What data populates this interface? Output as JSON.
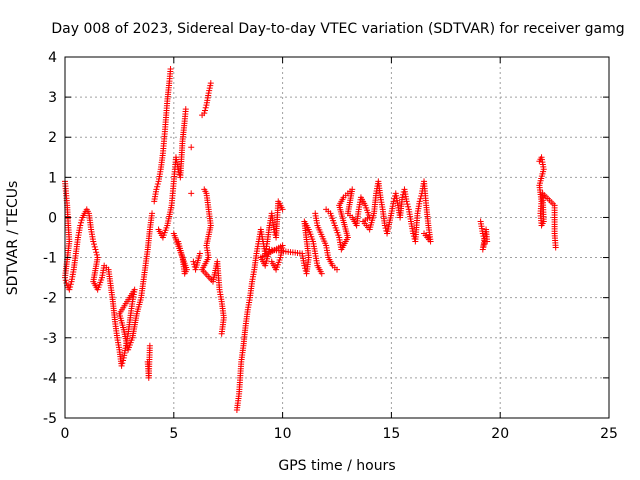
{
  "chart_data": {
    "type": "scatter",
    "title": "Day 008 of 2023, Sidereal Day-to-day VTEC variation (SDTVAR) for receiver gamg",
    "xlabel": "GPS time / hours",
    "ylabel": "SDTVAR / TECUs",
    "xlim": [
      0,
      25
    ],
    "ylim": [
      -5,
      4
    ],
    "x_ticks": [
      0,
      5,
      10,
      15,
      20,
      25
    ],
    "x_tick_labels": [
      "0",
      "5",
      "10",
      "15",
      "20",
      "25"
    ],
    "y_ticks": [
      -5,
      -4,
      -3,
      -2,
      -1,
      0,
      1,
      2,
      3,
      4
    ],
    "y_tick_labels": [
      "-5",
      "-4",
      "-3",
      "-2",
      "-1",
      "0",
      "1",
      "2",
      "3",
      "4"
    ],
    "grid": true,
    "marker": "+",
    "color": "#ff0000",
    "series": [
      {
        "name": "SDTVAR",
        "points": [
          [
            0.0,
            0.9
          ],
          [
            0.05,
            0.6
          ],
          [
            0.1,
            0.3
          ],
          [
            0.15,
            -0.2
          ],
          [
            0.2,
            -0.6
          ],
          [
            0.0,
            -1.5
          ],
          [
            0.1,
            -1.7
          ],
          [
            0.2,
            -1.8
          ],
          [
            0.3,
            -1.6
          ],
          [
            0.4,
            -1.3
          ],
          [
            0.5,
            -0.9
          ],
          [
            0.6,
            -0.5
          ],
          [
            0.7,
            -0.2
          ],
          [
            0.8,
            0.0
          ],
          [
            0.9,
            0.1
          ],
          [
            1.0,
            0.2
          ],
          [
            1.1,
            0.1
          ],
          [
            1.2,
            -0.3
          ],
          [
            1.3,
            -0.6
          ],
          [
            1.4,
            -0.8
          ],
          [
            1.5,
            -1.0
          ],
          [
            1.3,
            -1.6
          ],
          [
            1.5,
            -1.8
          ],
          [
            1.7,
            -1.5
          ],
          [
            1.8,
            -1.2
          ],
          [
            2.0,
            -1.3
          ],
          [
            2.1,
            -1.7
          ],
          [
            2.2,
            -2.1
          ],
          [
            2.3,
            -2.6
          ],
          [
            2.4,
            -3.0
          ],
          [
            2.5,
            -3.3
          ],
          [
            2.6,
            -3.7
          ],
          [
            2.7,
            -3.5
          ],
          [
            2.8,
            -3.2
          ],
          [
            2.9,
            -2.9
          ],
          [
            3.0,
            -2.5
          ],
          [
            3.1,
            -2.1
          ],
          [
            3.2,
            -1.8
          ],
          [
            2.5,
            -2.4
          ],
          [
            2.7,
            -2.8
          ],
          [
            2.9,
            -3.3
          ],
          [
            3.1,
            -3.0
          ],
          [
            3.3,
            -2.4
          ],
          [
            3.5,
            -2.0
          ],
          [
            3.6,
            -1.6
          ],
          [
            3.7,
            -1.2
          ],
          [
            3.8,
            -0.8
          ],
          [
            3.9,
            -0.3
          ],
          [
            4.0,
            0.1
          ],
          [
            3.8,
            -3.6
          ],
          [
            3.85,
            -4.0
          ],
          [
            3.9,
            -3.2
          ],
          [
            4.1,
            0.4
          ],
          [
            4.2,
            0.7
          ],
          [
            4.3,
            0.9
          ],
          [
            4.4,
            1.2
          ],
          [
            4.5,
            1.6
          ],
          [
            4.6,
            2.2
          ],
          [
            4.7,
            2.9
          ],
          [
            4.8,
            3.4
          ],
          [
            4.85,
            3.7
          ],
          [
            4.3,
            -0.3
          ],
          [
            4.5,
            -0.5
          ],
          [
            4.7,
            -0.2
          ],
          [
            4.9,
            0.3
          ],
          [
            5.0,
            0.9
          ],
          [
            5.1,
            1.5
          ],
          [
            5.2,
            1.2
          ],
          [
            5.3,
            1.0
          ],
          [
            5.4,
            1.9
          ],
          [
            5.5,
            2.4
          ],
          [
            5.55,
            2.7
          ],
          [
            5.2,
            -0.6
          ],
          [
            5.4,
            -1.0
          ],
          [
            5.5,
            -1.4
          ],
          [
            5.6,
            -1.3
          ],
          [
            5.0,
            -0.4
          ],
          [
            5.8,
            1.75
          ],
          [
            5.8,
            0.6
          ],
          [
            5.9,
            -1.1
          ],
          [
            6.0,
            -1.3
          ],
          [
            6.2,
            -0.9
          ],
          [
            6.3,
            2.55
          ],
          [
            6.4,
            2.6
          ],
          [
            6.5,
            2.8
          ],
          [
            6.6,
            3.1
          ],
          [
            6.7,
            3.35
          ],
          [
            6.4,
            0.7
          ],
          [
            6.5,
            0.6
          ],
          [
            6.6,
            0.2
          ],
          [
            6.7,
            -0.2
          ],
          [
            6.5,
            -0.7
          ],
          [
            6.6,
            -1.0
          ],
          [
            6.3,
            -1.3
          ],
          [
            6.8,
            -1.6
          ],
          [
            7.0,
            -1.1
          ],
          [
            7.1,
            -1.8
          ],
          [
            7.2,
            -2.1
          ],
          [
            7.3,
            -2.5
          ],
          [
            7.2,
            -2.9
          ],
          [
            7.9,
            -4.8
          ],
          [
            8.0,
            -4.4
          ],
          [
            8.05,
            -4.0
          ],
          [
            8.1,
            -3.6
          ],
          [
            8.2,
            -3.2
          ],
          [
            8.3,
            -2.7
          ],
          [
            8.4,
            -2.3
          ],
          [
            8.5,
            -2.0
          ],
          [
            8.6,
            -1.6
          ],
          [
            8.7,
            -1.3
          ],
          [
            8.8,
            -0.9
          ],
          [
            8.9,
            -0.6
          ],
          [
            9.0,
            -0.3
          ],
          [
            9.1,
            -0.6
          ],
          [
            9.2,
            -0.9
          ],
          [
            9.3,
            -0.6
          ],
          [
            9.4,
            -0.2
          ],
          [
            9.5,
            0.1
          ],
          [
            9.6,
            -0.3
          ],
          [
            9.7,
            -0.5
          ],
          [
            9.8,
            0.4
          ],
          [
            9.9,
            0.3
          ],
          [
            10.0,
            0.2
          ],
          [
            9.5,
            -1.1
          ],
          [
            9.7,
            -1.3
          ],
          [
            9.9,
            -1.0
          ],
          [
            10.0,
            -0.7
          ],
          [
            9.0,
            -1.0
          ],
          [
            9.2,
            -1.2
          ],
          [
            9.4,
            -0.8
          ],
          [
            10.9,
            -0.9
          ],
          [
            11.0,
            -1.2
          ],
          [
            11.1,
            -1.4
          ],
          [
            11.2,
            -1.0
          ],
          [
            11.0,
            -0.1
          ],
          [
            11.2,
            -0.3
          ],
          [
            11.4,
            -0.6
          ],
          [
            11.5,
            -0.9
          ],
          [
            11.6,
            -1.2
          ],
          [
            11.8,
            -1.4
          ],
          [
            11.5,
            0.1
          ],
          [
            11.6,
            -0.2
          ],
          [
            12.0,
            -0.7
          ],
          [
            12.1,
            -1.0
          ],
          [
            12.3,
            -1.2
          ],
          [
            12.5,
            -1.3
          ],
          [
            12.0,
            0.2
          ],
          [
            12.2,
            0.1
          ],
          [
            12.4,
            -0.2
          ],
          [
            12.6,
            -0.5
          ],
          [
            12.7,
            -0.8
          ],
          [
            12.9,
            -0.6
          ],
          [
            13.0,
            -0.5
          ],
          [
            12.6,
            0.3
          ],
          [
            12.8,
            0.5
          ],
          [
            13.0,
            0.6
          ],
          [
            13.2,
            0.7
          ],
          [
            13.0,
            0.1
          ],
          [
            13.2,
            0.0
          ],
          [
            13.4,
            -0.2
          ],
          [
            13.5,
            0.2
          ],
          [
            13.6,
            0.5
          ],
          [
            13.8,
            0.3
          ],
          [
            14.0,
            0.0
          ],
          [
            13.7,
            -0.1
          ],
          [
            14.0,
            -0.3
          ],
          [
            14.2,
            0.1
          ],
          [
            14.3,
            0.6
          ],
          [
            14.4,
            0.9
          ],
          [
            14.5,
            0.5
          ],
          [
            14.6,
            0.2
          ],
          [
            14.7,
            -0.2
          ],
          [
            14.8,
            -0.4
          ],
          [
            15.0,
            0.1
          ],
          [
            15.1,
            0.4
          ],
          [
            15.2,
            0.6
          ],
          [
            15.3,
            0.3
          ],
          [
            15.4,
            0.0
          ],
          [
            15.5,
            0.5
          ],
          [
            15.6,
            0.7
          ],
          [
            15.7,
            0.4
          ],
          [
            15.8,
            0.2
          ],
          [
            15.9,
            -0.1
          ],
          [
            16.0,
            -0.4
          ],
          [
            16.1,
            -0.6
          ],
          [
            16.2,
            0.1
          ],
          [
            16.3,
            0.4
          ],
          [
            16.4,
            0.6
          ],
          [
            16.5,
            0.9
          ],
          [
            16.6,
            0.3
          ],
          [
            16.7,
            -0.2
          ],
          [
            16.8,
            -0.6
          ],
          [
            16.5,
            -0.4
          ],
          [
            16.7,
            -0.5
          ],
          [
            19.1,
            -0.1
          ],
          [
            19.2,
            -0.4
          ],
          [
            19.3,
            -0.6
          ],
          [
            19.2,
            -0.8
          ],
          [
            19.35,
            -0.3
          ],
          [
            19.4,
            -0.6
          ],
          [
            21.8,
            1.4
          ],
          [
            21.9,
            1.5
          ],
          [
            22.0,
            1.2
          ],
          [
            21.8,
            0.8
          ],
          [
            21.9,
            0.4
          ],
          [
            21.85,
            0.1
          ],
          [
            21.9,
            -0.2
          ],
          [
            22.0,
            -0.1
          ],
          [
            21.95,
            0.6
          ],
          [
            22.5,
            0.3
          ],
          [
            22.5,
            0.0
          ],
          [
            22.5,
            -0.4
          ],
          [
            22.55,
            -0.75
          ]
        ]
      }
    ]
  }
}
